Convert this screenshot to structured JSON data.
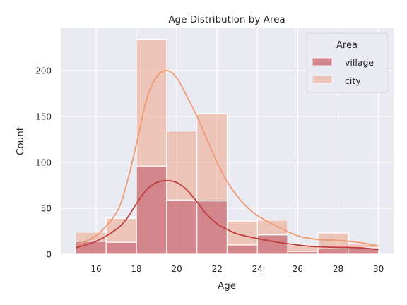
{
  "chart_data": {
    "type": "bar",
    "title": "Age Distribution by Area",
    "xlabel": "Age",
    "ylabel": "Count",
    "xlim": [
      14.25,
      30.75
    ],
    "ylim": [
      0,
      246
    ],
    "x_ticks": [
      16,
      18,
      20,
      22,
      24,
      26,
      28,
      30
    ],
    "y_ticks": [
      0,
      50,
      100,
      150,
      200
    ],
    "grid": true,
    "stacked": true,
    "bin_edges": [
      15,
      16.5,
      18,
      19.5,
      21,
      22.5,
      24,
      25.5,
      27,
      28.5,
      30
    ],
    "series": [
      {
        "name": "village",
        "color": "#c44e52",
        "values": [
          14,
          13,
          96,
          59,
          58,
          10,
          21,
          3,
          7,
          7
        ]
      },
      {
        "name": "city",
        "color": "#f0a07e",
        "values": [
          10,
          26,
          138,
          75,
          95,
          26,
          16,
          7,
          16,
          4
        ]
      }
    ],
    "kde": [
      {
        "name": "village",
        "color": "#c03d3e",
        "x": [
          15,
          16,
          17,
          17.5,
          18,
          18.5,
          19,
          19.5,
          20,
          20.5,
          21,
          21.5,
          22,
          22.5,
          23,
          24,
          25,
          26,
          27,
          28,
          29,
          30
        ],
        "y": [
          7,
          14,
          27,
          38,
          55,
          70,
          78,
          80,
          78,
          70,
          57,
          43,
          33,
          27,
          22,
          17,
          13,
          10,
          8,
          7.5,
          7,
          5
        ]
      },
      {
        "name": "city",
        "color": "#ef9a73",
        "x": [
          15,
          16,
          17,
          17.5,
          18,
          18.5,
          19,
          19.5,
          20,
          20.5,
          21,
          21.5,
          22,
          22.5,
          23,
          23.5,
          24,
          25,
          26,
          27,
          28,
          29,
          30
        ],
        "y": [
          10,
          20,
          45,
          75,
          120,
          168,
          193,
          200,
          192,
          172,
          150,
          125,
          100,
          79,
          63,
          51,
          42,
          30,
          20,
          16,
          15,
          13,
          9
        ]
      }
    ],
    "legend": {
      "title": "Area",
      "position": "top-right"
    }
  }
}
